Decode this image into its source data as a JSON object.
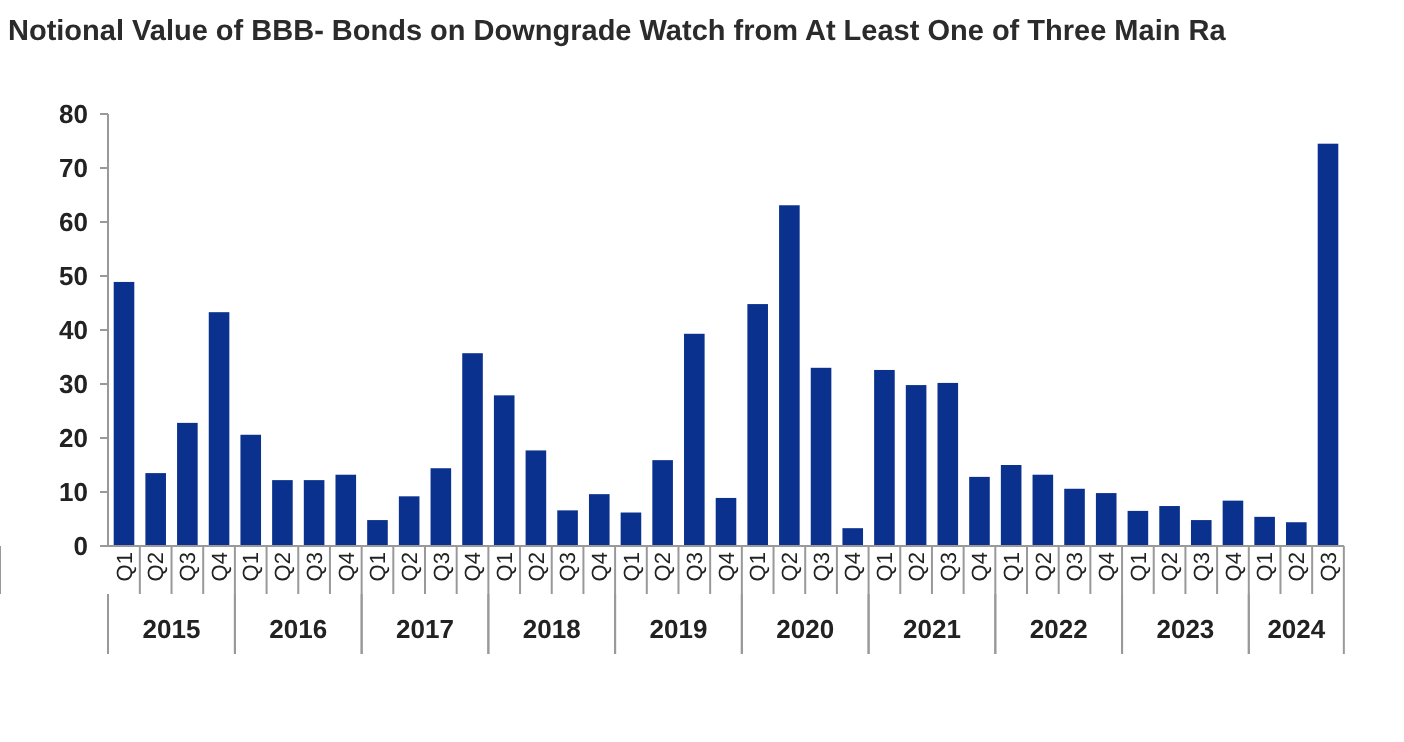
{
  "chart_data": {
    "type": "bar",
    "title": "Notional Value of BBB- Bonds on Downgrade Watch from At Least One of Three Main Ra",
    "categories": [
      "Q1",
      "Q2",
      "Q3",
      "Q4",
      "Q1",
      "Q2",
      "Q3",
      "Q4",
      "Q1",
      "Q2",
      "Q3",
      "Q4",
      "Q1",
      "Q2",
      "Q3",
      "Q4",
      "Q1",
      "Q2",
      "Q3",
      "Q4",
      "Q1",
      "Q2",
      "Q3",
      "Q4",
      "Q1",
      "Q2",
      "Q3",
      "Q4",
      "Q1",
      "Q2",
      "Q3",
      "Q4",
      "Q1",
      "Q2",
      "Q3",
      "Q4",
      "Q1",
      "Q2",
      "Q3"
    ],
    "values": [
      48.9,
      13.5,
      22.8,
      43.3,
      20.6,
      12.2,
      12.2,
      13.2,
      4.8,
      9.2,
      14.4,
      35.7,
      27.9,
      17.7,
      6.6,
      9.6,
      6.2,
      15.9,
      39.3,
      8.9,
      44.8,
      63.1,
      33.0,
      3.3,
      32.6,
      29.8,
      30.2,
      12.8,
      15.0,
      13.2,
      10.6,
      9.8,
      6.5,
      7.4,
      4.8,
      8.4,
      5.4,
      4.4,
      74.5
    ],
    "color": "#0b318f",
    "ylim": [
      0,
      80
    ],
    "yticks": [
      0,
      10,
      20,
      30,
      40,
      50,
      60,
      70,
      80
    ],
    "grid": false,
    "annotations": [
      "2015",
      "2016",
      "2017",
      "2018",
      "2019",
      "2020",
      "2021",
      "2022",
      "2023",
      "2024"
    ]
  }
}
